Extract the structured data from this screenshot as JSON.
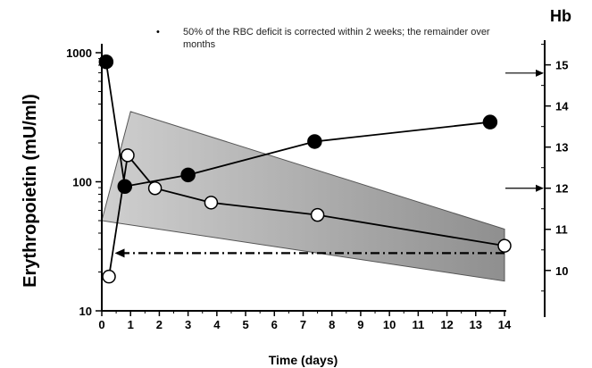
{
  "chart_data": {
    "type": "line",
    "annotation": "50% of the RBC deficit is corrected within 2 weeks; the remainder over months",
    "xlabel": "Time (days)",
    "ylabel": "Erythropoietin (mU/ml)",
    "y2label": "Hb",
    "x_ticks": [
      "0",
      "1",
      "2",
      "3",
      "4",
      "5",
      "6",
      "7",
      "8",
      "9",
      "10",
      "11",
      "12",
      "13",
      "14"
    ],
    "xlim": [
      0,
      14
    ],
    "y_scale": "log",
    "ylim": [
      10,
      1000
    ],
    "y_ticks": [
      "10",
      "100",
      "1000"
    ],
    "y2lim": [
      9.3,
      15.6
    ],
    "y2_ticks": [
      "10",
      "11",
      "12",
      "13",
      "14",
      "15"
    ],
    "series": [
      {
        "axis": "left",
        "marker": "filled-circle",
        "x": [
          0.15,
          0.8,
          3,
          7.4,
          13.5
        ],
        "y": [
          850,
          92,
          113,
          205,
          290
        ]
      },
      {
        "axis": "right",
        "marker": "open-circle",
        "x": [
          0.25,
          0.9,
          1.85,
          3.8,
          7.5,
          14
        ],
        "y": [
          9.85,
          12.8,
          12.0,
          11.65,
          11.35,
          10.6
        ]
      }
    ],
    "shaded_band": {
      "axis": "left",
      "polygon": [
        [
          0,
          50
        ],
        [
          1,
          350
        ],
        [
          14,
          43
        ],
        [
          14,
          17
        ]
      ]
    },
    "dashed_arrow": {
      "axis": "left",
      "from": [
        14,
        28
      ],
      "to": [
        0.45,
        28
      ]
    },
    "right_arrows": [
      14.8,
      12.0
    ],
    "colors": {
      "band": "#a6a6a6",
      "line": "#000000",
      "open_marker_fill": "#ffffff"
    }
  }
}
